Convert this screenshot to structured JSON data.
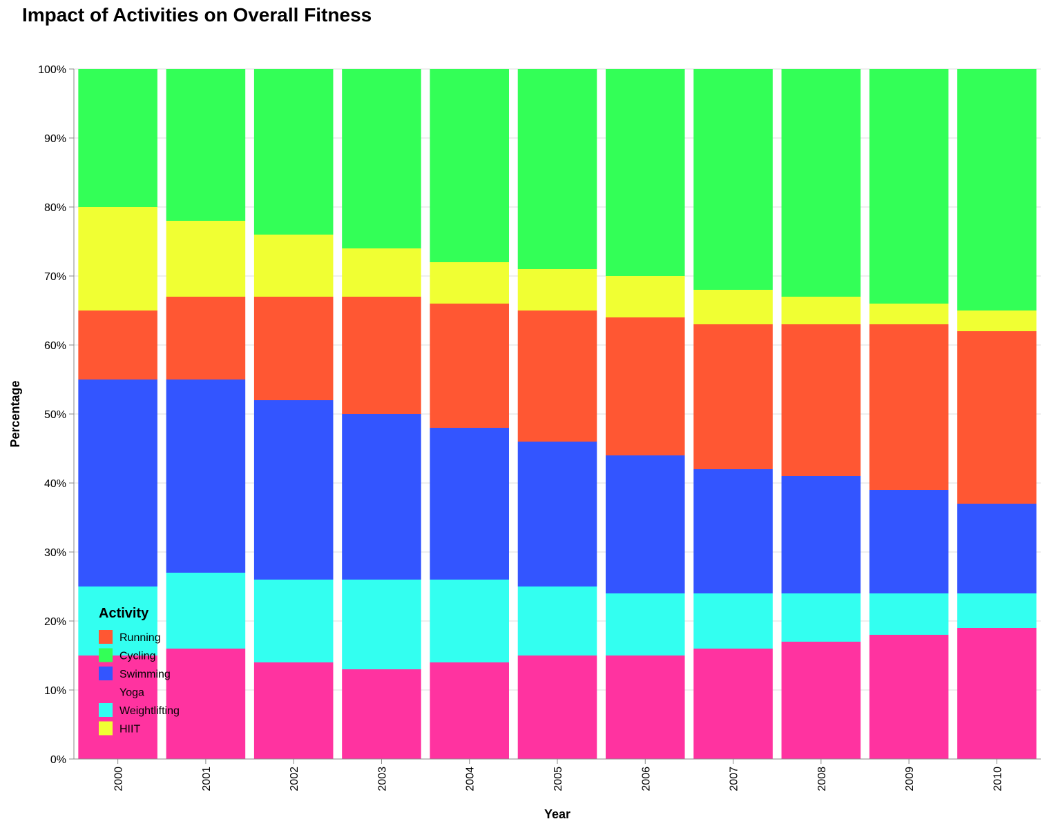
{
  "chart_data": {
    "type": "bar",
    "stacked": "normalized",
    "title": "Impact of Activities on Overall Fitness",
    "xlabel": "Year",
    "ylabel": "Percentage",
    "ylim": [
      0,
      100
    ],
    "y_ticks": [
      "0%",
      "10%",
      "20%",
      "30%",
      "40%",
      "50%",
      "60%",
      "70%",
      "80%",
      "90%",
      "100%"
    ],
    "categories": [
      "2000",
      "2001",
      "2002",
      "2003",
      "2004",
      "2005",
      "2006",
      "2007",
      "2008",
      "2009",
      "2010"
    ],
    "legend_title": "Activity",
    "legend_position": "bottom-left",
    "grid": true,
    "series": [
      {
        "name": "Yoga",
        "color": "#ff33a0",
        "values": [
          15,
          16,
          14,
          13,
          14,
          15,
          15,
          16,
          17,
          18,
          19
        ]
      },
      {
        "name": "Weightlifting",
        "color": "#33fff0",
        "values": [
          10,
          11,
          12,
          13,
          12,
          10,
          9,
          8,
          7,
          6,
          5
        ]
      },
      {
        "name": "Swimming",
        "color": "#3355ff",
        "values": [
          30,
          28,
          26,
          24,
          22,
          21,
          20,
          18,
          17,
          15,
          13
        ]
      },
      {
        "name": "Running",
        "color": "#ff5733",
        "values": [
          10,
          12,
          15,
          17,
          18,
          19,
          20,
          21,
          22,
          24,
          25
        ]
      },
      {
        "name": "HIIT",
        "color": "#f0ff33",
        "values": [
          15,
          11,
          9,
          7,
          6,
          6,
          6,
          5,
          4,
          3,
          3
        ]
      },
      {
        "name": "Cycling",
        "color": "#33ff57",
        "values": [
          20,
          22,
          24,
          26,
          28,
          29,
          30,
          32,
          33,
          34,
          35
        ]
      }
    ],
    "legend_order": [
      "Running",
      "Cycling",
      "Swimming",
      "Yoga",
      "Weightlifting",
      "HIIT"
    ]
  }
}
